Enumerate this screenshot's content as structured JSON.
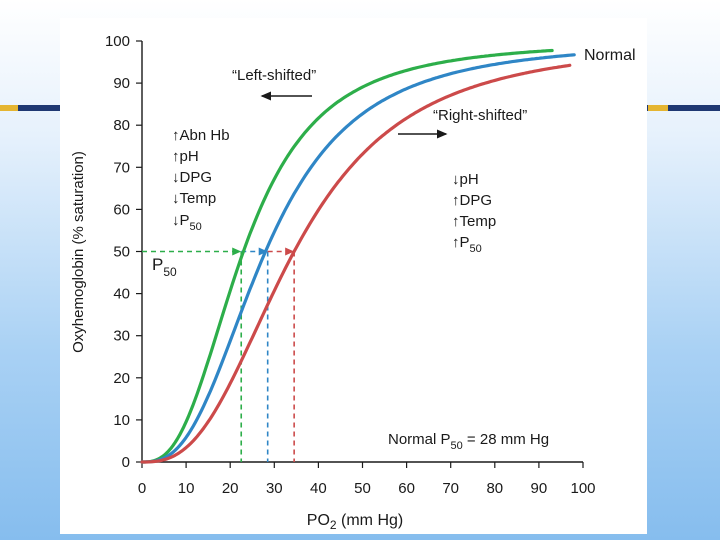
{
  "colors": {
    "navy_band": "#1f3872",
    "gold_band": "#e5b531",
    "green": "#2dae4a",
    "blue": "#2f86c6",
    "red": "#cc4a4a"
  },
  "chart_data": {
    "type": "line",
    "title": "",
    "xlabel": "PO",
    "xlabel_sub": "2",
    "xlabel_unit": " (mm Hg)",
    "ylabel": "Oxyhemoglobin (% saturation)",
    "xlim": [
      0,
      100
    ],
    "ylim": [
      0,
      100
    ],
    "x_ticks": [
      0,
      10,
      20,
      30,
      40,
      50,
      60,
      70,
      80,
      90,
      100
    ],
    "y_ticks": [
      0,
      10,
      20,
      30,
      40,
      50,
      60,
      70,
      80,
      90,
      100
    ],
    "grid": false,
    "series": [
      {
        "name": "",
        "color": "#2dae4a",
        "p50": 23,
        "hill_n": 2.7,
        "vmax": 100,
        "x_max": 93
      },
      {
        "name": "Normal",
        "color": "#2f86c6",
        "p50": 28,
        "hill_n": 2.7,
        "vmax": 100,
        "x_max": 98
      },
      {
        "name": "",
        "color": "#cc4a4a",
        "p50": 34.5,
        "hill_n": 2.7,
        "vmax": 100,
        "x_max": 97
      }
    ],
    "p50_markers": [
      {
        "x": 22.5,
        "color": "#2dae4a"
      },
      {
        "x": 28.5,
        "color": "#2f86c6"
      },
      {
        "x": 34.5,
        "color": "#cc4a4a"
      }
    ],
    "p50_level": 50
  },
  "annotations": {
    "left_shifted": "“Left-shifted”",
    "right_shifted": "“Right-shifted”",
    "p50_label": "P",
    "p50_sub": "50",
    "left_factors": [
      {
        "arrow": "↑",
        "text": "Abn Hb",
        "sub": ""
      },
      {
        "arrow": "↑",
        "text": "pH",
        "sub": ""
      },
      {
        "arrow": "↓",
        "text": "DPG",
        "sub": ""
      },
      {
        "arrow": "↓",
        "text": "Temp",
        "sub": ""
      },
      {
        "arrow": "↓",
        "text": "P",
        "sub": "50"
      }
    ],
    "right_factors": [
      {
        "arrow": "↓",
        "text": "pH",
        "sub": ""
      },
      {
        "arrow": "↑",
        "text": "DPG",
        "sub": ""
      },
      {
        "arrow": "↑",
        "text": "Temp",
        "sub": ""
      },
      {
        "arrow": "↑",
        "text": "P",
        "sub": "50"
      }
    ],
    "normal_p50_prefix": "Normal P",
    "normal_p50_sub": "50",
    "normal_p50_suffix": " = 28 mm Hg"
  }
}
